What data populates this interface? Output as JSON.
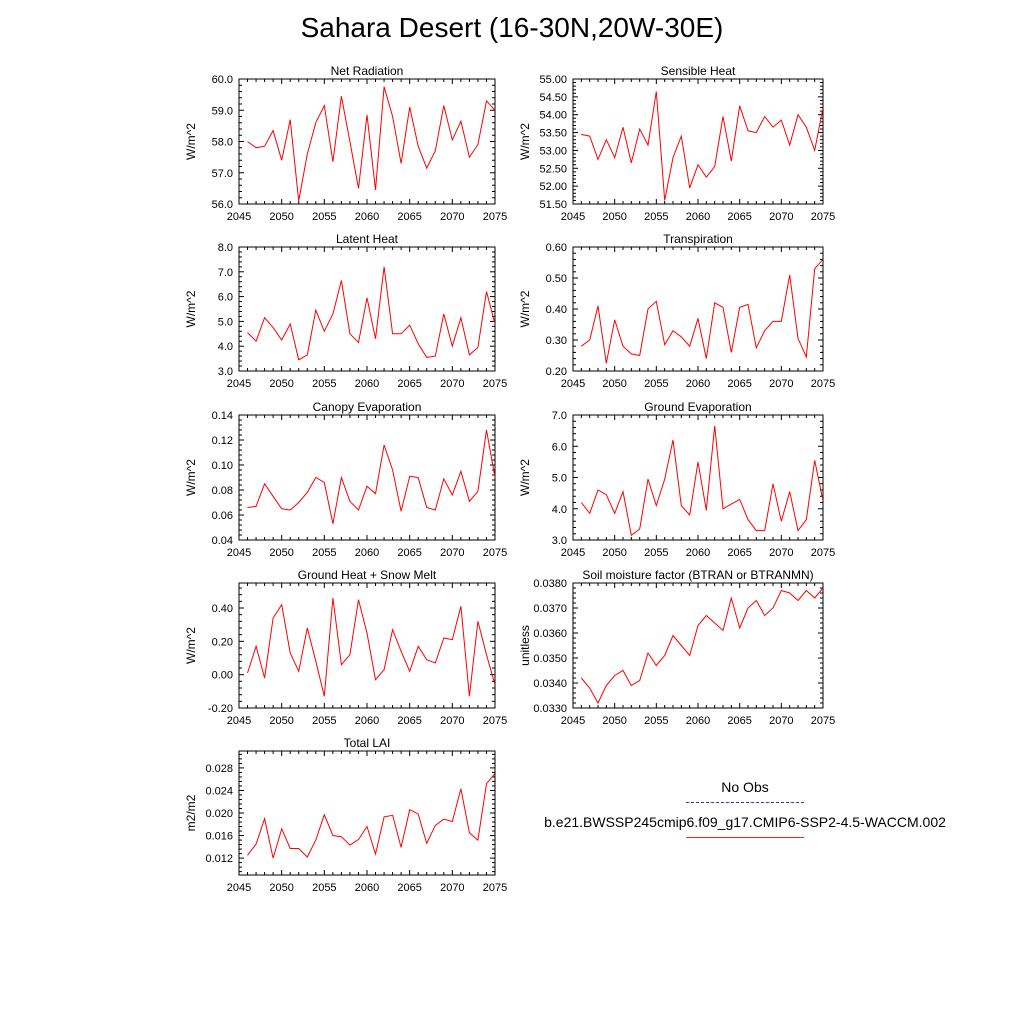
{
  "title": "Sahara Desert (16-30N,20W-30E)",
  "legend": {
    "obs_label": "No Obs",
    "model_label": "b.e21.BWSSP245cmip6.f09_g17.CMIP6-SSP2-4.5-WACCM.002",
    "obs_color": "#3a3a8a",
    "model_color": "#ff2020"
  },
  "chart_data": [
    {
      "type": "line",
      "title": "Net Radiation",
      "ylabel": "W/m^2",
      "xlim": [
        2045,
        2075
      ],
      "ylim": [
        56.0,
        60.0
      ],
      "xticks": [
        2045,
        2050,
        2055,
        2060,
        2065,
        2070,
        2075
      ],
      "yticks": [
        "56.0",
        "57.0",
        "58.0",
        "59.0",
        "60.0"
      ],
      "series": [
        {
          "color": "#ff0000",
          "x": [
            2046,
            2047,
            2048,
            2049,
            2050,
            2051,
            2052,
            2053,
            2054,
            2055,
            2056,
            2057,
            2058,
            2059,
            2060,
            2061,
            2062,
            2063,
            2064,
            2065,
            2066,
            2067,
            2068,
            2069,
            2070,
            2071,
            2072,
            2073,
            2074,
            2075
          ],
          "values": [
            58.0,
            57.8,
            57.85,
            58.35,
            57.4,
            58.7,
            56.1,
            57.6,
            58.6,
            59.15,
            57.35,
            59.45,
            58.0,
            56.5,
            58.85,
            56.45,
            59.75,
            58.8,
            57.3,
            59.1,
            57.85,
            57.15,
            57.7,
            59.15,
            58.05,
            58.65,
            57.5,
            57.9,
            59.3,
            59.0
          ]
        }
      ]
    },
    {
      "type": "line",
      "title": "Sensible Heat",
      "ylabel": "W/m^2",
      "xlim": [
        2045,
        2075
      ],
      "ylim": [
        51.5,
        55.0
      ],
      "xticks": [
        2045,
        2050,
        2055,
        2060,
        2065,
        2070,
        2075
      ],
      "yticks": [
        "51.50",
        "52.00",
        "52.50",
        "53.00",
        "53.50",
        "54.00",
        "54.50",
        "55.00"
      ],
      "series": [
        {
          "color": "#ff0000",
          "x": [
            2046,
            2047,
            2048,
            2049,
            2050,
            2051,
            2052,
            2053,
            2054,
            2055,
            2056,
            2057,
            2058,
            2059,
            2060,
            2061,
            2062,
            2063,
            2064,
            2065,
            2066,
            2067,
            2068,
            2069,
            2070,
            2071,
            2072,
            2073,
            2074,
            2075
          ],
          "values": [
            53.45,
            53.4,
            52.75,
            53.3,
            52.8,
            53.65,
            52.65,
            53.6,
            53.15,
            54.65,
            51.6,
            52.8,
            53.4,
            51.95,
            52.6,
            52.25,
            52.55,
            53.95,
            52.7,
            54.25,
            53.55,
            53.5,
            53.95,
            53.65,
            53.85,
            53.15,
            54.0,
            53.65,
            53.0,
            54.2
          ]
        }
      ]
    },
    {
      "type": "line",
      "title": "Latent Heat",
      "ylabel": "W/m^2",
      "xlim": [
        2045,
        2075
      ],
      "ylim": [
        3.0,
        8.0
      ],
      "xticks": [
        2045,
        2050,
        2055,
        2060,
        2065,
        2070,
        2075
      ],
      "yticks": [
        "3.0",
        "4.0",
        "5.0",
        "6.0",
        "7.0",
        "8.0"
      ],
      "series": [
        {
          "color": "#ff0000",
          "x": [
            2046,
            2047,
            2048,
            2049,
            2050,
            2051,
            2052,
            2053,
            2054,
            2055,
            2056,
            2057,
            2058,
            2059,
            2060,
            2061,
            2062,
            2063,
            2064,
            2065,
            2066,
            2067,
            2068,
            2069,
            2070,
            2071,
            2072,
            2073,
            2074,
            2075
          ],
          "values": [
            4.55,
            4.2,
            5.15,
            4.75,
            4.25,
            4.9,
            3.45,
            3.65,
            5.45,
            4.6,
            5.3,
            6.65,
            4.5,
            4.15,
            5.95,
            4.3,
            7.2,
            4.5,
            4.5,
            4.85,
            4.1,
            3.55,
            3.6,
            5.3,
            4.0,
            5.15,
            3.65,
            3.95,
            6.2,
            4.9
          ]
        }
      ]
    },
    {
      "type": "line",
      "title": "Transpiration",
      "ylabel": "W/m^2",
      "xlim": [
        2045,
        2075
      ],
      "ylim": [
        0.2,
        0.6
      ],
      "xticks": [
        2045,
        2050,
        2055,
        2060,
        2065,
        2070,
        2075
      ],
      "yticks": [
        "0.20",
        "0.30",
        "0.40",
        "0.50",
        "0.60"
      ],
      "series": [
        {
          "color": "#ff0000",
          "x": [
            2046,
            2047,
            2048,
            2049,
            2050,
            2051,
            2052,
            2053,
            2054,
            2055,
            2056,
            2057,
            2058,
            2059,
            2060,
            2061,
            2062,
            2063,
            2064,
            2065,
            2066,
            2067,
            2068,
            2069,
            2070,
            2071,
            2072,
            2073,
            2074,
            2075
          ],
          "values": [
            0.28,
            0.3,
            0.41,
            0.225,
            0.365,
            0.28,
            0.255,
            0.25,
            0.4,
            0.425,
            0.285,
            0.33,
            0.31,
            0.28,
            0.37,
            0.24,
            0.42,
            0.405,
            0.26,
            0.405,
            0.415,
            0.275,
            0.33,
            0.36,
            0.36,
            0.51,
            0.305,
            0.245,
            0.53,
            0.56
          ]
        }
      ]
    },
    {
      "type": "line",
      "title": "Canopy Evaporation",
      "ylabel": "W/m^2",
      "xlim": [
        2045,
        2075
      ],
      "ylim": [
        0.04,
        0.14
      ],
      "xticks": [
        2045,
        2050,
        2055,
        2060,
        2065,
        2070,
        2075
      ],
      "yticks": [
        "0.04",
        "0.06",
        "0.08",
        "0.10",
        "0.12",
        "0.14"
      ],
      "series": [
        {
          "color": "#ff0000",
          "x": [
            2046,
            2047,
            2048,
            2049,
            2050,
            2051,
            2052,
            2053,
            2054,
            2055,
            2056,
            2057,
            2058,
            2059,
            2060,
            2061,
            2062,
            2063,
            2064,
            2065,
            2066,
            2067,
            2068,
            2069,
            2070,
            2071,
            2072,
            2073,
            2074,
            2075
          ],
          "values": [
            0.066,
            0.067,
            0.085,
            0.075,
            0.065,
            0.064,
            0.07,
            0.078,
            0.09,
            0.086,
            0.053,
            0.09,
            0.071,
            0.064,
            0.083,
            0.077,
            0.116,
            0.096,
            0.063,
            0.091,
            0.09,
            0.066,
            0.064,
            0.089,
            0.076,
            0.095,
            0.071,
            0.079,
            0.128,
            0.09
          ]
        }
      ]
    },
    {
      "type": "line",
      "title": "Ground Evaporation",
      "ylabel": "W/m^2",
      "xlim": [
        2045,
        2075
      ],
      "ylim": [
        3.0,
        7.0
      ],
      "xticks": [
        2045,
        2050,
        2055,
        2060,
        2065,
        2070,
        2075
      ],
      "yticks": [
        "3.0",
        "4.0",
        "5.0",
        "6.0",
        "7.0"
      ],
      "series": [
        {
          "color": "#ff0000",
          "x": [
            2046,
            2047,
            2048,
            2049,
            2050,
            2051,
            2052,
            2053,
            2054,
            2055,
            2056,
            2057,
            2058,
            2059,
            2060,
            2061,
            2062,
            2063,
            2064,
            2065,
            2066,
            2067,
            2068,
            2069,
            2070,
            2071,
            2072,
            2073,
            2074,
            2075
          ],
          "values": [
            4.2,
            3.85,
            4.6,
            4.45,
            3.85,
            4.55,
            3.15,
            3.35,
            4.95,
            4.1,
            4.95,
            6.2,
            4.1,
            3.8,
            5.5,
            3.95,
            6.65,
            4.0,
            4.15,
            4.3,
            3.65,
            3.3,
            3.3,
            4.8,
            3.6,
            4.55,
            3.3,
            3.65,
            5.55,
            4.25
          ]
        }
      ]
    },
    {
      "type": "line",
      "title": "Ground Heat + Snow Melt",
      "ylabel": "W/m^2",
      "xlim": [
        2045,
        2075
      ],
      "ylim": [
        -0.2,
        0.55
      ],
      "xticks": [
        2045,
        2050,
        2055,
        2060,
        2065,
        2070,
        2075
      ],
      "yticks": [
        "-0.20",
        "0.00",
        "0.20",
        "0.40"
      ],
      "series": [
        {
          "color": "#ff0000",
          "x": [
            2046,
            2047,
            2048,
            2049,
            2050,
            2051,
            2052,
            2053,
            2054,
            2055,
            2056,
            2057,
            2058,
            2059,
            2060,
            2061,
            2062,
            2063,
            2064,
            2065,
            2066,
            2067,
            2068,
            2069,
            2070,
            2071,
            2072,
            2073,
            2074,
            2075
          ],
          "values": [
            0.01,
            0.17,
            -0.02,
            0.34,
            0.42,
            0.13,
            0.02,
            0.28,
            0.08,
            -0.13,
            0.46,
            0.06,
            0.12,
            0.45,
            0.25,
            -0.03,
            0.03,
            0.27,
            0.14,
            0.02,
            0.17,
            0.09,
            0.07,
            0.22,
            0.21,
            0.41,
            -0.13,
            0.32,
            0.12,
            -0.06
          ]
        }
      ]
    },
    {
      "type": "line",
      "title": "Soil moisture factor (BTRAN or BTRANMN)",
      "ylabel": "unitless",
      "xlim": [
        2045,
        2075
      ],
      "ylim": [
        0.033,
        0.038
      ],
      "xticks": [
        2045,
        2050,
        2055,
        2060,
        2065,
        2070,
        2075
      ],
      "yticks": [
        "0.0330",
        "0.0340",
        "0.0350",
        "0.0360",
        "0.0370",
        "0.0380"
      ],
      "series": [
        {
          "color": "#ff0000",
          "x": [
            2046,
            2047,
            2048,
            2049,
            2050,
            2051,
            2052,
            2053,
            2054,
            2055,
            2056,
            2057,
            2058,
            2059,
            2060,
            2061,
            2062,
            2063,
            2064,
            2065,
            2066,
            2067,
            2068,
            2069,
            2070,
            2071,
            2072,
            2073,
            2074,
            2075
          ],
          "values": [
            0.0342,
            0.0338,
            0.0332,
            0.0339,
            0.0343,
            0.0345,
            0.0339,
            0.0341,
            0.0352,
            0.0347,
            0.0351,
            0.0359,
            0.0355,
            0.0351,
            0.0363,
            0.0367,
            0.0364,
            0.0361,
            0.0374,
            0.0362,
            0.037,
            0.0373,
            0.0367,
            0.037,
            0.0377,
            0.0376,
            0.0373,
            0.0377,
            0.0374,
            0.0378
          ]
        }
      ]
    },
    {
      "type": "line",
      "title": "Total LAI",
      "ylabel": "m2/m2",
      "xlim": [
        2045,
        2075
      ],
      "ylim": [
        0.009,
        0.031
      ],
      "xticks": [
        2045,
        2050,
        2055,
        2060,
        2065,
        2070,
        2075
      ],
      "yticks": [
        "0.012",
        "0.016",
        "0.020",
        "0.024",
        "0.028"
      ],
      "series": [
        {
          "color": "#ff0000",
          "x": [
            2046,
            2047,
            2048,
            2049,
            2050,
            2051,
            2052,
            2053,
            2054,
            2055,
            2056,
            2057,
            2058,
            2059,
            2060,
            2061,
            2062,
            2063,
            2064,
            2065,
            2066,
            2067,
            2068,
            2069,
            2070,
            2071,
            2072,
            2073,
            2074,
            2075
          ],
          "values": [
            0.0125,
            0.0145,
            0.019,
            0.012,
            0.0172,
            0.0137,
            0.0137,
            0.0122,
            0.0152,
            0.0197,
            0.016,
            0.0158,
            0.0143,
            0.0153,
            0.0176,
            0.0127,
            0.0193,
            0.0196,
            0.0139,
            0.0206,
            0.0198,
            0.0146,
            0.0178,
            0.0189,
            0.0185,
            0.0243,
            0.0165,
            0.0152,
            0.0252,
            0.027
          ]
        }
      ]
    }
  ]
}
